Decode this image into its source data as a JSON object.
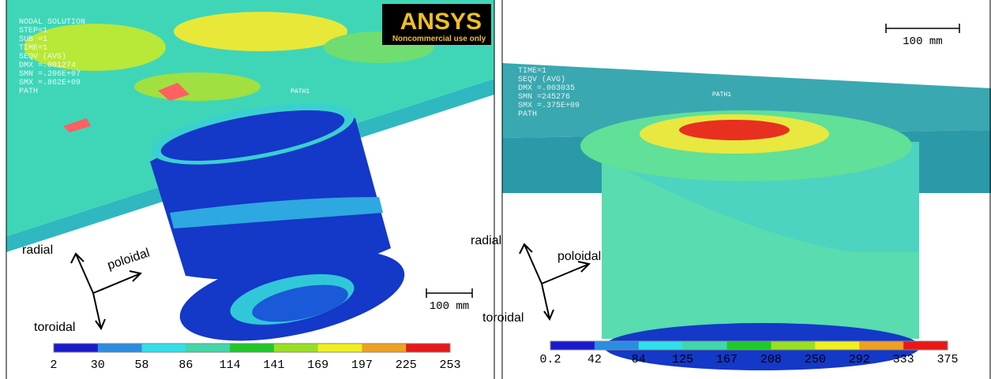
{
  "panels": [
    {
      "legend_lines": [
        "NODAL SOLUTION",
        "STEP=1",
        "SUB =1",
        "TIME=1",
        "SEQV     (AVG)",
        "DMX =.001274",
        "SMN =.206E+07",
        "SMX =.862E+09",
        "PATH"
      ],
      "logo": {
        "title": "ANSYS",
        "subtitle": "Noncommercial use only"
      },
      "path_label": "PATH1",
      "axes": {
        "radial": "radial",
        "poloidal": "poloidal",
        "toroidal": "toroidal"
      },
      "scale_bar": "100 mm",
      "colorbar": [
        2,
        30,
        58,
        86,
        114,
        141,
        169,
        197,
        225,
        253
      ]
    },
    {
      "legend_lines": [
        "TIME=1",
        "SEQV     (AVG)",
        "DMX =.003035",
        "SMN =245276",
        "SMX =.375E+09",
        "PATH"
      ],
      "path_label": "PATH1",
      "axes": {
        "radial": "radial",
        "poloidal": "poloidal",
        "toroidal": "toroidal"
      },
      "scale_bar": "100 mm",
      "colorbar": [
        0.2,
        42,
        84,
        125,
        167,
        208,
        250,
        292,
        333,
        375
      ]
    }
  ]
}
